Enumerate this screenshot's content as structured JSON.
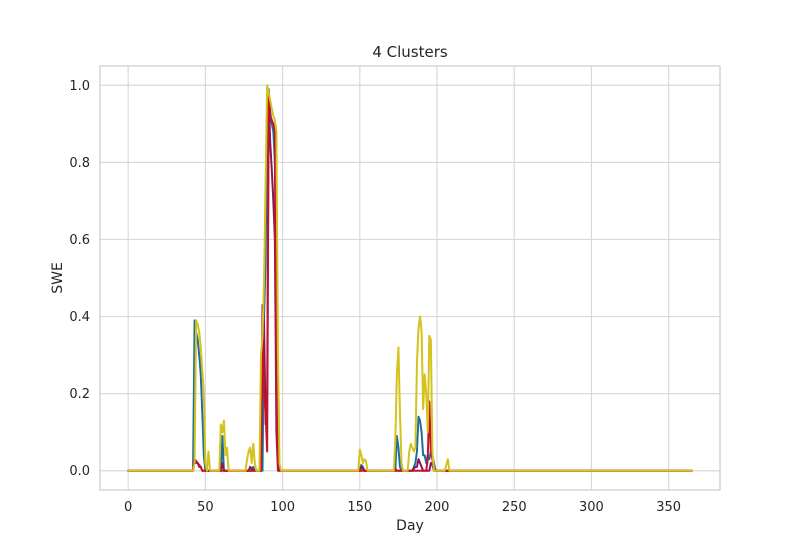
{
  "chart_data": {
    "type": "line",
    "title": "4 Clusters",
    "xlabel": "Day",
    "ylabel": "SWE",
    "xlim": [
      -18.25,
      383.25
    ],
    "ylim": [
      -0.05,
      1.05
    ],
    "xticks": [
      0,
      50,
      100,
      150,
      200,
      250,
      300,
      350
    ],
    "yticks": [
      0.0,
      0.2,
      0.4,
      0.6,
      0.8,
      1.0
    ],
    "ytick_labels": [
      "0.0",
      "0.2",
      "0.4",
      "0.6",
      "0.8",
      "1.0"
    ],
    "grid": true,
    "series": [
      {
        "color": "#1f6f9e",
        "points": [
          [
            0,
            0
          ],
          [
            42,
            0
          ],
          [
            43,
            0.39
          ],
          [
            44,
            0.36
          ],
          [
            45,
            0.34
          ],
          [
            46,
            0.3
          ],
          [
            47,
            0.25
          ],
          [
            48,
            0.15
          ],
          [
            49,
            0.04
          ],
          [
            50,
            0
          ],
          [
            60,
            0
          ],
          [
            61,
            0.09
          ],
          [
            62,
            0
          ],
          [
            80,
            0
          ],
          [
            81,
            0.01
          ],
          [
            82,
            0
          ],
          [
            87,
            0
          ],
          [
            88,
            0.4
          ],
          [
            89,
            0.55
          ],
          [
            90,
            0.95
          ],
          [
            91,
            0.99
          ],
          [
            92,
            0.93
          ],
          [
            93,
            0.9
          ],
          [
            94,
            0.88
          ],
          [
            95,
            0.8
          ],
          [
            96,
            0.3
          ],
          [
            97,
            0.02
          ],
          [
            98,
            0
          ],
          [
            150,
            0
          ],
          [
            151,
            0.015
          ],
          [
            152,
            0.01
          ],
          [
            153,
            0
          ],
          [
            173,
            0
          ],
          [
            174,
            0.09
          ],
          [
            175,
            0.06
          ],
          [
            176,
            0.01
          ],
          [
            177,
            0
          ],
          [
            184,
            0
          ],
          [
            185,
            0.01
          ],
          [
            186,
            0.02
          ],
          [
            187,
            0.05
          ],
          [
            188,
            0.14
          ],
          [
            189,
            0.13
          ],
          [
            190,
            0.1
          ],
          [
            191,
            0.04
          ],
          [
            192,
            0.04
          ],
          [
            193,
            0.02
          ],
          [
            194,
            0.04
          ],
          [
            195,
            0.03
          ],
          [
            196,
            0.05
          ],
          [
            197,
            0.04
          ],
          [
            198,
            0.02
          ],
          [
            199,
            0
          ],
          [
            365,
            0
          ]
        ]
      },
      {
        "color": "#8a1559",
        "points": [
          [
            0,
            0
          ],
          [
            42,
            0
          ],
          [
            43,
            0.03
          ],
          [
            44,
            0.02
          ],
          [
            45,
            0.02
          ],
          [
            46,
            0.01
          ],
          [
            47,
            0.01
          ],
          [
            48,
            0
          ],
          [
            60,
            0
          ],
          [
            61,
            0.02
          ],
          [
            62,
            0
          ],
          [
            78,
            0
          ],
          [
            79,
            0.01
          ],
          [
            80,
            0.005
          ],
          [
            81,
            0
          ],
          [
            86,
            0
          ],
          [
            87,
            0.43
          ],
          [
            88,
            0.38
          ],
          [
            89,
            0.12
          ],
          [
            90,
            0.2
          ],
          [
            91,
            0.97
          ],
          [
            92,
            0.85
          ],
          [
            93,
            0.78
          ],
          [
            94,
            0.7
          ],
          [
            95,
            0.6
          ],
          [
            96,
            0.1
          ],
          [
            97,
            0
          ],
          [
            150,
            0
          ],
          [
            151,
            0.01
          ],
          [
            152,
            0.005
          ],
          [
            153,
            0
          ],
          [
            184,
            0
          ],
          [
            185,
            0.005
          ],
          [
            186,
            0.01
          ],
          [
            187,
            0.01
          ],
          [
            188,
            0.03
          ],
          [
            189,
            0.02
          ],
          [
            190,
            0.01
          ],
          [
            191,
            0
          ],
          [
            195,
            0
          ],
          [
            196,
            0.02
          ],
          [
            197,
            0.015
          ],
          [
            198,
            0
          ],
          [
            365,
            0
          ]
        ]
      },
      {
        "color": "#c4122e",
        "points": [
          [
            0,
            0
          ],
          [
            42,
            0
          ],
          [
            43,
            0.03
          ],
          [
            44,
            0.025
          ],
          [
            45,
            0.02
          ],
          [
            46,
            0.015
          ],
          [
            47,
            0.01
          ],
          [
            48,
            0
          ],
          [
            86,
            0
          ],
          [
            87,
            0.35
          ],
          [
            88,
            0.2
          ],
          [
            89,
            0.15
          ],
          [
            90,
            0.05
          ],
          [
            91,
            0.98
          ],
          [
            92,
            0.92
          ],
          [
            93,
            0.91
          ],
          [
            94,
            0.9
          ],
          [
            95,
            0.88
          ],
          [
            96,
            0.2
          ],
          [
            97,
            0.01
          ],
          [
            98,
            0
          ],
          [
            172,
            0
          ],
          [
            173,
            0.005
          ],
          [
            174,
            0
          ],
          [
            193,
            0
          ],
          [
            194,
            0.03
          ],
          [
            195,
            0.18
          ],
          [
            196,
            0.05
          ],
          [
            197,
            0.03
          ],
          [
            198,
            0
          ],
          [
            365,
            0
          ]
        ]
      },
      {
        "color": "#d4c31b",
        "points": [
          [
            0,
            0
          ],
          [
            42,
            0
          ],
          [
            43,
            0.02
          ],
          [
            44,
            0.39
          ],
          [
            45,
            0.38
          ],
          [
            46,
            0.36
          ],
          [
            47,
            0.32
          ],
          [
            48,
            0.26
          ],
          [
            49,
            0.2
          ],
          [
            50,
            0.02
          ],
          [
            51,
            0
          ],
          [
            52,
            0.05
          ],
          [
            53,
            0
          ],
          [
            59,
            0
          ],
          [
            60,
            0.12
          ],
          [
            61,
            0.1
          ],
          [
            62,
            0.13
          ],
          [
            63,
            0.04
          ],
          [
            64,
            0.06
          ],
          [
            65,
            0
          ],
          [
            76,
            0
          ],
          [
            77,
            0.03
          ],
          [
            78,
            0.05
          ],
          [
            79,
            0.06
          ],
          [
            80,
            0.02
          ],
          [
            81,
            0.07
          ],
          [
            82,
            0.02
          ],
          [
            83,
            0
          ],
          [
            85,
            0
          ],
          [
            86,
            0.3
          ],
          [
            87,
            0.35
          ],
          [
            88,
            0.5
          ],
          [
            89,
            0.75
          ],
          [
            90,
            1.0
          ],
          [
            91,
            0.98
          ],
          [
            92,
            0.96
          ],
          [
            93,
            0.94
          ],
          [
            94,
            0.92
          ],
          [
            95,
            0.91
          ],
          [
            96,
            0.88
          ],
          [
            97,
            0.3
          ],
          [
            98,
            0.02
          ],
          [
            99,
            0
          ],
          [
            149,
            0
          ],
          [
            150,
            0.055
          ],
          [
            151,
            0.04
          ],
          [
            152,
            0.02
          ],
          [
            153,
            0.03
          ],
          [
            154,
            0.025
          ],
          [
            155,
            0
          ],
          [
            172,
            0
          ],
          [
            173,
            0.08
          ],
          [
            174,
            0.25
          ],
          [
            175,
            0.32
          ],
          [
            176,
            0.15
          ],
          [
            177,
            0.02
          ],
          [
            178,
            0
          ],
          [
            181,
            0
          ],
          [
            182,
            0.05
          ],
          [
            183,
            0.07
          ],
          [
            184,
            0.06
          ],
          [
            185,
            0.05
          ],
          [
            186,
            0.06
          ],
          [
            187,
            0.28
          ],
          [
            188,
            0.37
          ],
          [
            189,
            0.4
          ],
          [
            190,
            0.36
          ],
          [
            191,
            0.16
          ],
          [
            192,
            0.25
          ],
          [
            193,
            0.2
          ],
          [
            194,
            0.1
          ],
          [
            195,
            0.35
          ],
          [
            196,
            0.34
          ],
          [
            197,
            0.05
          ],
          [
            198,
            0
          ],
          [
            205,
            0
          ],
          [
            206,
            0.015
          ],
          [
            207,
            0.03
          ],
          [
            208,
            0
          ],
          [
            365,
            0
          ]
        ]
      }
    ]
  }
}
